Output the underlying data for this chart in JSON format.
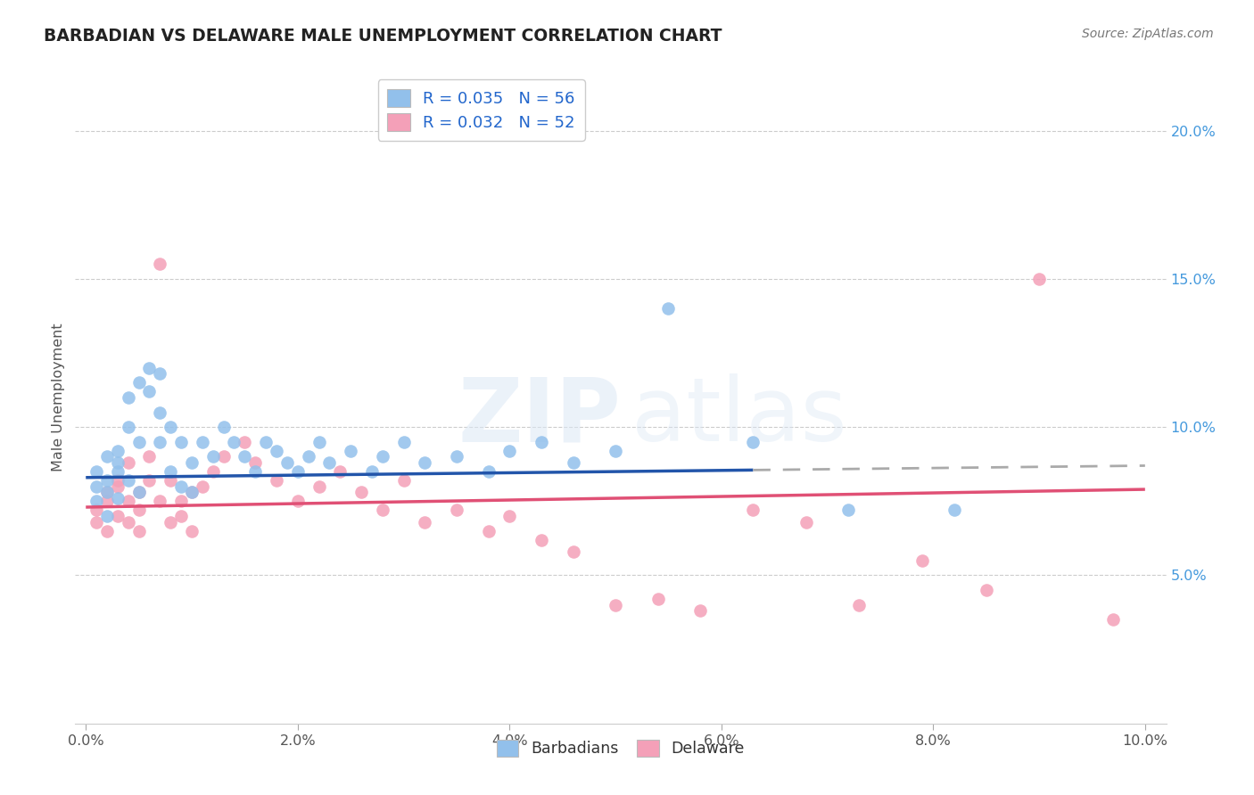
{
  "title": "BARBADIAN VS DELAWARE MALE UNEMPLOYMENT CORRELATION CHART",
  "source": "Source: ZipAtlas.com",
  "ylabel": "Male Unemployment",
  "R_barbadian": 0.035,
  "N_barbadian": 56,
  "R_delaware": 0.032,
  "N_delaware": 52,
  "legend_label_barbadian": "Barbadians",
  "legend_label_delaware": "Delaware",
  "barbadian_color": "#92c0eb",
  "delaware_color": "#f4a0b8",
  "barbadian_line_color": "#2255aa",
  "delaware_line_color": "#e05075",
  "dashed_line_color": "#aaaaaa",
  "grid_color": "#cccccc",
  "title_color": "#222222",
  "source_color": "#777777",
  "tick_label_color": "#555555",
  "right_tick_color": "#4499dd",
  "ylabel_color": "#555555",
  "background_color": "#ffffff",
  "xlim": [
    -0.001,
    0.102
  ],
  "ylim": [
    0.0,
    0.22
  ],
  "xticks": [
    0.0,
    0.02,
    0.04,
    0.06,
    0.08,
    0.1
  ],
  "yticks_right": [
    0.05,
    0.1,
    0.15,
    0.2
  ],
  "yticks_grid": [
    0.05,
    0.1,
    0.15,
    0.2
  ],
  "blue_line_solid_end": 0.063,
  "barbadian_x": [
    0.001,
    0.001,
    0.001,
    0.002,
    0.002,
    0.002,
    0.002,
    0.003,
    0.003,
    0.003,
    0.003,
    0.004,
    0.004,
    0.004,
    0.005,
    0.005,
    0.005,
    0.006,
    0.006,
    0.007,
    0.007,
    0.007,
    0.008,
    0.008,
    0.009,
    0.009,
    0.01,
    0.01,
    0.011,
    0.012,
    0.013,
    0.014,
    0.015,
    0.016,
    0.017,
    0.018,
    0.019,
    0.02,
    0.021,
    0.022,
    0.023,
    0.025,
    0.027,
    0.028,
    0.03,
    0.032,
    0.035,
    0.038,
    0.04,
    0.043,
    0.046,
    0.05,
    0.055,
    0.063,
    0.072,
    0.082
  ],
  "barbadian_y": [
    0.08,
    0.075,
    0.085,
    0.09,
    0.078,
    0.082,
    0.07,
    0.076,
    0.085,
    0.092,
    0.088,
    0.1,
    0.11,
    0.082,
    0.095,
    0.078,
    0.115,
    0.12,
    0.112,
    0.118,
    0.105,
    0.095,
    0.085,
    0.1,
    0.095,
    0.08,
    0.088,
    0.078,
    0.095,
    0.09,
    0.1,
    0.095,
    0.09,
    0.085,
    0.095,
    0.092,
    0.088,
    0.085,
    0.09,
    0.095,
    0.088,
    0.092,
    0.085,
    0.09,
    0.095,
    0.088,
    0.09,
    0.085,
    0.092,
    0.095,
    0.088,
    0.092,
    0.14,
    0.095,
    0.072,
    0.072
  ],
  "delaware_x": [
    0.001,
    0.001,
    0.002,
    0.002,
    0.002,
    0.003,
    0.003,
    0.003,
    0.004,
    0.004,
    0.004,
    0.005,
    0.005,
    0.005,
    0.006,
    0.006,
    0.007,
    0.007,
    0.008,
    0.008,
    0.009,
    0.009,
    0.01,
    0.01,
    0.011,
    0.012,
    0.013,
    0.015,
    0.016,
    0.018,
    0.02,
    0.022,
    0.024,
    0.026,
    0.028,
    0.03,
    0.032,
    0.035,
    0.038,
    0.04,
    0.043,
    0.046,
    0.05,
    0.054,
    0.058,
    0.063,
    0.068,
    0.073,
    0.079,
    0.085,
    0.09,
    0.097
  ],
  "delaware_y": [
    0.072,
    0.068,
    0.075,
    0.065,
    0.078,
    0.08,
    0.07,
    0.082,
    0.068,
    0.075,
    0.088,
    0.072,
    0.065,
    0.078,
    0.082,
    0.09,
    0.155,
    0.075,
    0.068,
    0.082,
    0.075,
    0.07,
    0.078,
    0.065,
    0.08,
    0.085,
    0.09,
    0.095,
    0.088,
    0.082,
    0.075,
    0.08,
    0.085,
    0.078,
    0.072,
    0.082,
    0.068,
    0.072,
    0.065,
    0.07,
    0.062,
    0.058,
    0.04,
    0.042,
    0.038,
    0.072,
    0.068,
    0.04,
    0.055,
    0.045,
    0.15,
    0.035
  ]
}
